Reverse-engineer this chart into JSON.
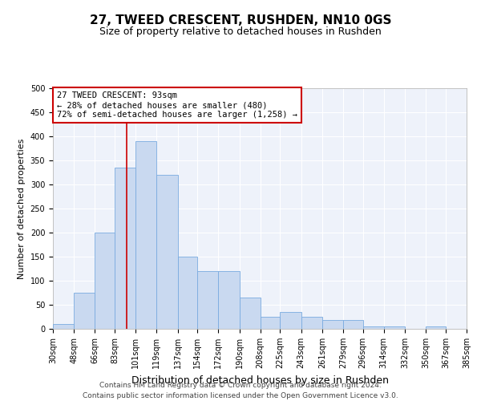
{
  "title": "27, TWEED CRESCENT, RUSHDEN, NN10 0GS",
  "subtitle": "Size of property relative to detached houses in Rushden",
  "xlabel": "Distribution of detached houses by size in Rushden",
  "ylabel": "Number of detached properties",
  "property_label": "27 TWEED CRESCENT: 93sqm",
  "annotation_line1": "← 28% of detached houses are smaller (480)",
  "annotation_line2": "72% of semi-detached houses are larger (1,258) →",
  "property_size": 93,
  "bin_edges": [
    30,
    48,
    66,
    83,
    101,
    119,
    137,
    154,
    172,
    190,
    208,
    225,
    243,
    261,
    279,
    296,
    314,
    332,
    350,
    367,
    385
  ],
  "bar_heights": [
    10,
    75,
    200,
    335,
    390,
    320,
    150,
    120,
    120,
    65,
    25,
    35,
    25,
    18,
    18,
    5,
    5,
    0,
    5,
    0
  ],
  "bar_color": "#c9d9f0",
  "bar_edge_color": "#7aabe0",
  "marker_line_color": "#cc0000",
  "annotation_box_color": "#cc0000",
  "bg_color": "#eef2fa",
  "grid_color": "#ffffff",
  "footer_line1": "Contains HM Land Registry data © Crown copyright and database right 2024.",
  "footer_line2": "Contains public sector information licensed under the Open Government Licence v3.0.",
  "ylim": [
    0,
    500
  ],
  "title_fontsize": 11,
  "subtitle_fontsize": 9,
  "ylabel_fontsize": 8,
  "xlabel_fontsize": 9,
  "tick_fontsize": 7,
  "annotation_fontsize": 7.5,
  "footer_fontsize": 6.5
}
